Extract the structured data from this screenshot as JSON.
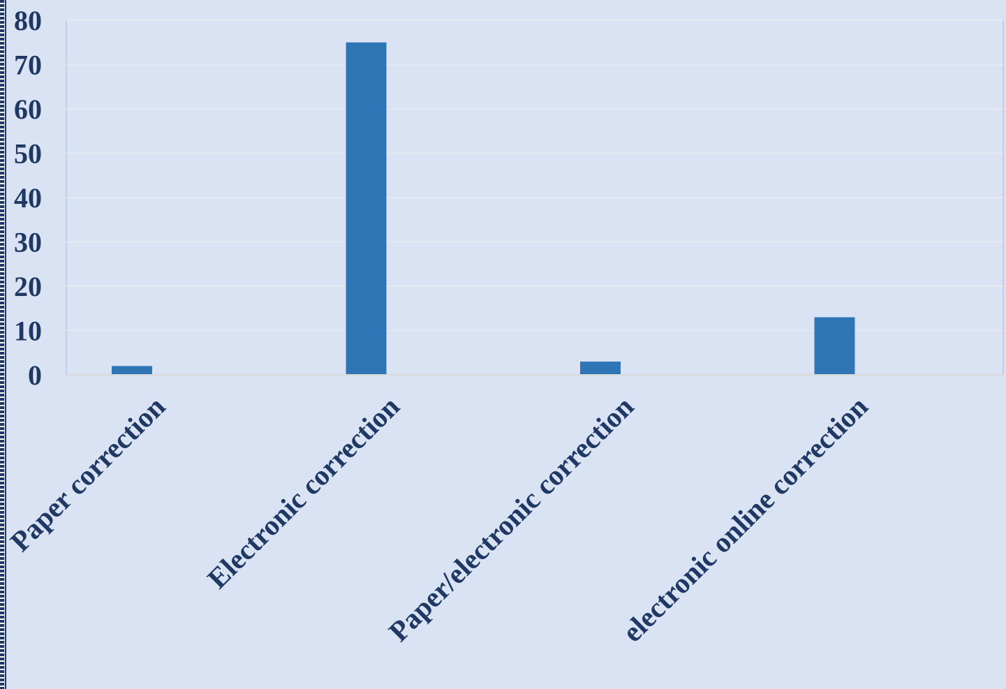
{
  "chart_data": {
    "type": "bar",
    "categories": [
      "Paper correction",
      "Electronic correction",
      "Paper/electronic correction",
      "electronic online correction"
    ],
    "values": [
      2,
      75,
      3,
      13
    ],
    "ylim": [
      0,
      80
    ],
    "yticks": [
      "0",
      "10",
      "20",
      "30",
      "40",
      "50",
      "60",
      "70",
      "80"
    ],
    "grid": true,
    "bar_color": "#2e75b6",
    "background_color": "#dae3f3",
    "grid_color": "#e6e9ef",
    "text_color": "#1f3864"
  }
}
